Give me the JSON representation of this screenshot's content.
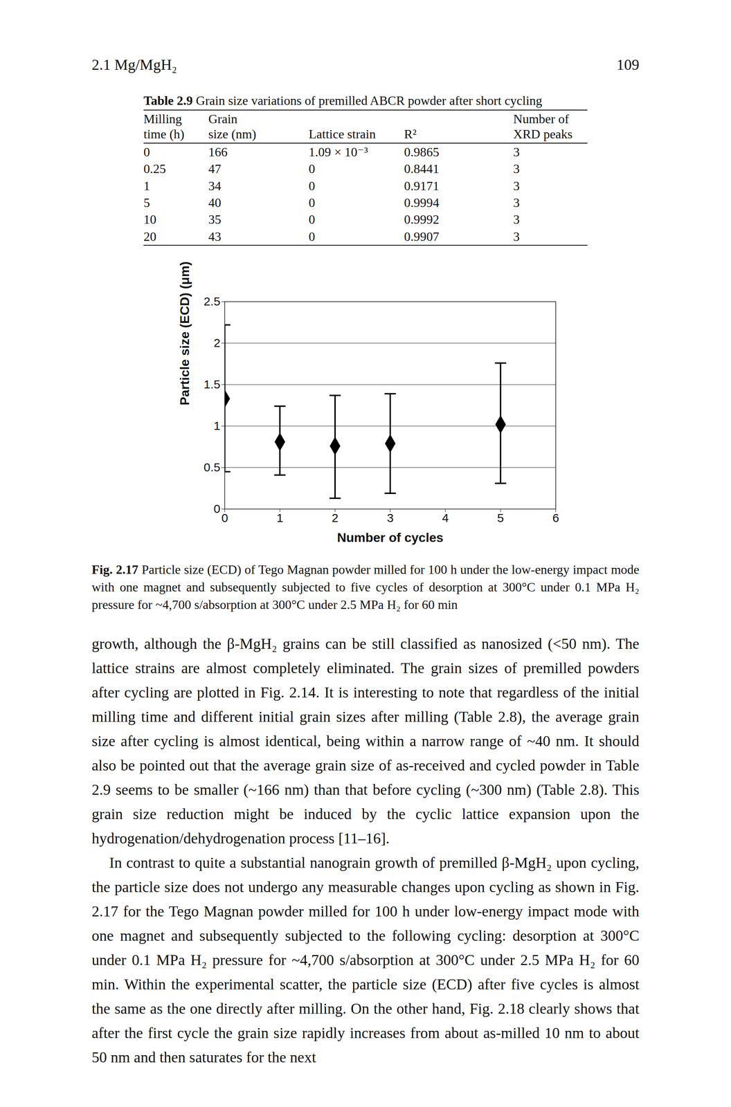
{
  "header": {
    "section": "2.1 Mg/MgH₂",
    "page": "109"
  },
  "table": {
    "label": "Table 2.9",
    "title": "Grain size variations of premilled ABCR powder after short cycling",
    "columns": [
      [
        "Milling",
        "time (h)"
      ],
      [
        "Grain",
        "size (nm)"
      ],
      [
        "Lattice strain"
      ],
      [
        "R²"
      ],
      [
        "Number of",
        "XRD peaks"
      ]
    ],
    "rows": [
      [
        "0",
        "166",
        "1.09 × 10⁻³",
        "0.9865",
        "3"
      ],
      [
        "0.25",
        "47",
        "0",
        "0.8441",
        "3"
      ],
      [
        "1",
        "34",
        "0",
        "0.9171",
        "3"
      ],
      [
        "5",
        "40",
        "0",
        "0.9994",
        "3"
      ],
      [
        "10",
        "35",
        "0",
        "0.9992",
        "3"
      ],
      [
        "20",
        "43",
        "0",
        "0.9907",
        "3"
      ]
    ]
  },
  "chart_data": {
    "type": "scatter",
    "x_label": "Number of cycles",
    "y_label": "Particle size (ECD) (μm)",
    "x": [
      0,
      1,
      2,
      3,
      5
    ],
    "values": [
      1.33,
      0.81,
      0.76,
      0.79,
      1.02
    ],
    "lower": [
      0.45,
      0.41,
      0.13,
      0.19,
      0.31
    ],
    "upper": [
      2.22,
      1.24,
      1.37,
      1.39,
      1.76
    ],
    "color": "#000000",
    "marker": "diamond",
    "xlim": [
      0,
      6
    ],
    "xticks": [
      0,
      1,
      2,
      3,
      4,
      5,
      6
    ],
    "ylim": [
      0,
      2.5
    ],
    "yticks": [
      0,
      0.5,
      1,
      1.5,
      2,
      2.5
    ],
    "grid": true
  },
  "caption": {
    "label": "Fig. 2.17",
    "text": "Particle size (ECD) of Tego Magnan powder milled for 100 h under the low-energy impact mode with one magnet and subsequently subjected to five cycles of desorption at 300°C under 0.1 MPa H₂ pressure for ~4,700 s/absorption at 300°C under 2.5 MPa H₂ for 60 min"
  },
  "paragraphs": [
    "growth, although the β-MgH₂ grains can be still classified as nanosized (<50 nm). The lattice strains are almost completely eliminated. The grain sizes of premilled powders after cycling are plotted in Fig. 2.14. It is interesting to note that regardless of the initial milling time and different initial grain sizes after milling (Table 2.8), the average grain size after cycling is almost identical, being within a narrow range of ~40 nm. It should also be pointed out that the average grain size of as-received and cycled powder in Table 2.9 seems to be smaller (~166 nm) than that before cycling (~300 nm) (Table 2.8). This grain size reduction might be induced by the cyclic lattice expansion upon the hydrogenation/dehydrogenation process [11–16].",
    "In contrast to quite a substantial nanograin growth of premilled β-MgH₂ upon cycling, the particle size does not undergo any measurable changes upon cycling as shown in Fig. 2.17 for the Tego Magnan powder milled for 100 h under low-energy impact mode with one magnet and subsequently subjected to the following cycling: desorption at 300°C under 0.1 MPa H₂ pressure for ~4,700 s/absorption at 300°C under 2.5 MPa H₂ for 60 min. Within the experimental scatter, the particle size (ECD) after five cycles is almost the same as the one directly after milling. On the other hand, Fig. 2.18 clearly shows that after the first cycle the grain size rapidly increases from about as-milled 10 nm to about 50 nm and then saturates for the next"
  ]
}
